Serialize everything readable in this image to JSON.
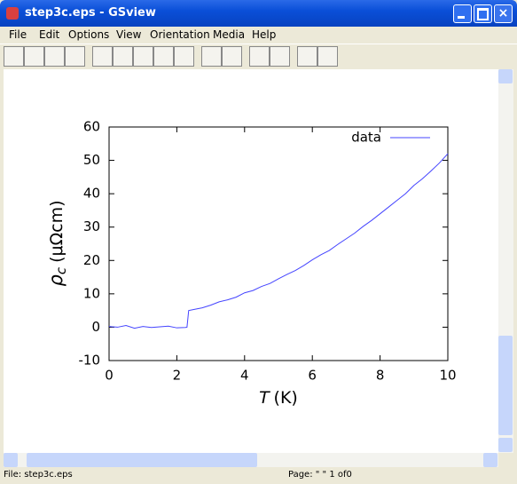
{
  "window": {
    "title": "step3c.eps - GSview"
  },
  "menu": [
    "File",
    "Edit",
    "Options",
    "View",
    "Orientation",
    "Media",
    "Help"
  ],
  "status": {
    "file": "File: step3c.eps",
    "page": "Page: \" \"  1 of0"
  },
  "chart_data": {
    "type": "line",
    "ylabel_symbol": "ρ",
    "ylabel_subscript": "c",
    "ylabel_unit": "(μΩcm)",
    "xlabel_symbol": "T",
    "xlabel_unit": "(K)",
    "x": [
      0,
      0.25,
      0.5,
      0.75,
      1.0,
      1.25,
      1.5,
      1.75,
      2.0,
      2.25,
      2.3,
      2.35,
      2.5,
      2.75,
      3,
      3.25,
      3.5,
      3.75,
      4,
      4.25,
      4.5,
      4.75,
      5,
      5.25,
      5.5,
      5.75,
      6,
      6.25,
      6.5,
      6.75,
      7,
      7.25,
      7.5,
      7.75,
      8,
      8.25,
      8.5,
      8.75,
      9,
      9.25,
      9.5,
      9.75,
      10
    ],
    "series": [
      {
        "name": "data",
        "color": "#4444ff",
        "values": [
          0.2,
          0.0,
          0.5,
          -0.3,
          0.2,
          -0.1,
          0.1,
          0.3,
          -0.2,
          -0.1,
          0.0,
          5.0,
          5.3,
          5.8,
          6.6,
          7.6,
          8.2,
          9.0,
          10.3,
          11.0,
          12.2,
          13.1,
          14.5,
          15.8,
          17.0,
          18.5,
          20.2,
          21.7,
          23.0,
          24.8,
          26.5,
          28.2,
          30.2,
          32.0,
          34.0,
          36.0,
          38.0,
          40.0,
          42.5,
          44.5,
          46.8,
          49.2,
          52.0
        ]
      }
    ],
    "xlim": [
      0,
      10
    ],
    "xticks": [
      0,
      2,
      4,
      6,
      8,
      10
    ],
    "ylim": [
      -10,
      60
    ],
    "yticks": [
      -10,
      0,
      10,
      20,
      30,
      40,
      50,
      60
    ],
    "legend": "upper right",
    "grid": false
  }
}
